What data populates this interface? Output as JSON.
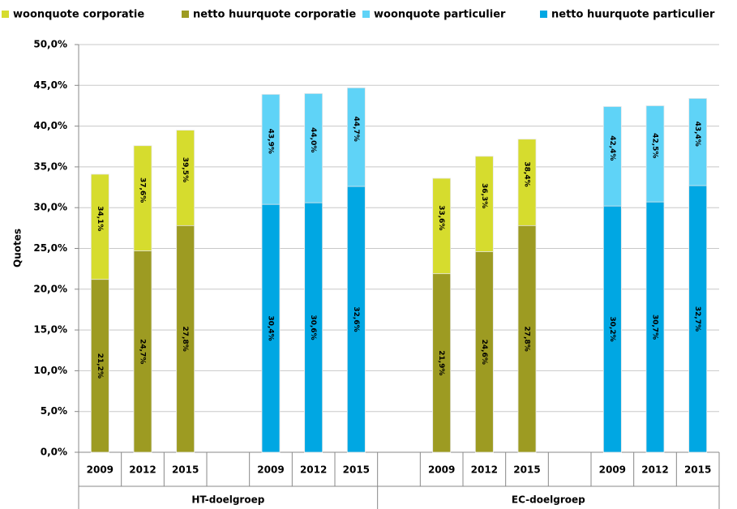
{
  "chart_data": {
    "type": "bar",
    "y_label": "Quotes",
    "categories": [
      "2009",
      "2012",
      "2015",
      null,
      "2009",
      "2012",
      "2015",
      null,
      "2009",
      "2012",
      "2015",
      null,
      "2009",
      "2012",
      "2015"
    ],
    "groups": [
      "HT-doelgroep",
      "EC-doelgroep"
    ],
    "series": [
      {
        "name": "woonquote corporatie",
        "color": "#d6dc2e",
        "values": [
          34.1,
          37.6,
          39.5,
          null,
          null,
          null,
          null,
          null,
          33.6,
          36.3,
          38.4,
          null,
          null,
          null,
          null
        ],
        "value_labels": [
          "34,1%",
          "37,6%",
          "39,5%",
          null,
          null,
          null,
          null,
          null,
          "33,6%",
          "36,3%",
          "38,4%",
          null,
          null,
          null,
          null
        ]
      },
      {
        "name": "netto huurquote corporatie",
        "color": "#9d9b22",
        "values": [
          21.2,
          24.7,
          27.8,
          null,
          null,
          null,
          null,
          null,
          21.9,
          24.6,
          27.8,
          null,
          null,
          null,
          null
        ],
        "value_labels": [
          "21,2%",
          "24,7%",
          "27,8%",
          null,
          null,
          null,
          null,
          null,
          "21,9%",
          "24,6%",
          "27,8%",
          null,
          null,
          null,
          null
        ]
      },
      {
        "name": "woonquote particulier",
        "color": "#5fd3f7",
        "values": [
          null,
          null,
          null,
          null,
          43.9,
          44.0,
          44.7,
          null,
          null,
          null,
          null,
          null,
          42.4,
          42.5,
          43.4
        ],
        "value_labels": [
          null,
          null,
          null,
          null,
          "43,9%",
          "44,0%",
          "44,7%",
          null,
          null,
          null,
          null,
          null,
          "42,4%",
          "42,5%",
          "43,4%"
        ]
      },
      {
        "name": "netto huurquote particulier",
        "color": "#00a7e3",
        "values": [
          null,
          null,
          null,
          null,
          30.4,
          30.6,
          32.6,
          null,
          null,
          null,
          null,
          null,
          30.2,
          30.7,
          32.7
        ],
        "value_labels": [
          null,
          null,
          null,
          null,
          "30,4%",
          "30,6%",
          "32,6%",
          null,
          null,
          null,
          null,
          null,
          "30,2%",
          "30,7%",
          "32,7%"
        ]
      }
    ],
    "ylim": [
      0,
      50
    ],
    "yticks": [
      {
        "value": 0,
        "label": "0,0%"
      },
      {
        "value": 5,
        "label": "5,0%"
      },
      {
        "value": 10,
        "label": "10,0%"
      },
      {
        "value": 15,
        "label": "15,0%"
      },
      {
        "value": 20,
        "label": "20,0%"
      },
      {
        "value": 25,
        "label": "25,0%"
      },
      {
        "value": 30,
        "label": "30,0%"
      },
      {
        "value": 35,
        "label": "35,0%"
      },
      {
        "value": 40,
        "label": "40,0%"
      },
      {
        "value": 45,
        "label": "45,0%"
      },
      {
        "value": 50,
        "label": "50,0%"
      }
    ],
    "grid": true
  }
}
